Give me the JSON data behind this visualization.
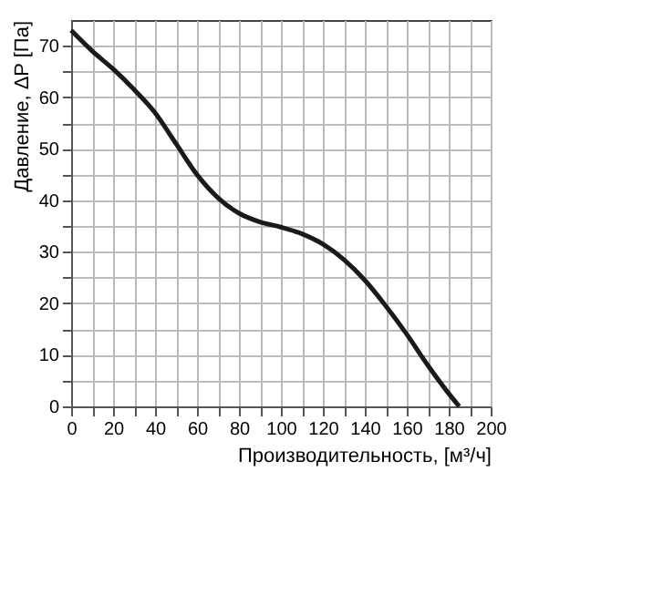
{
  "chart_data": {
    "type": "line",
    "xlabel": "Производительность, [м³/ч]",
    "ylabel": "Давление, ΔP [Па]",
    "x": [
      0,
      10,
      20,
      30,
      40,
      50,
      60,
      70,
      80,
      90,
      100,
      110,
      120,
      130,
      140,
      150,
      160,
      170,
      180,
      185
    ],
    "series": [
      {
        "color": "#1a1a1a",
        "values": [
          73,
          69,
          65.5,
          61.5,
          57,
          51,
          45,
          40.5,
          37.5,
          35.8,
          34.8,
          33.5,
          31.5,
          28.5,
          24.5,
          19.5,
          14,
          8,
          2.5,
          0
        ]
      }
    ],
    "xlim": [
      0,
      200
    ],
    "ylim": [
      0,
      75
    ],
    "xticks": [
      0,
      {
        "value": 10,
        "label": null
      },
      20,
      {
        "value": 30,
        "label": null
      },
      40,
      {
        "value": 50,
        "label": null
      },
      60,
      {
        "value": 70,
        "label": null
      },
      80,
      {
        "value": 90,
        "label": null
      },
      100,
      {
        "value": 110,
        "label": null
      },
      120,
      {
        "value": 130,
        "label": null
      },
      140,
      {
        "value": 150,
        "label": null
      },
      160,
      {
        "value": 170,
        "label": null
      },
      180,
      {
        "value": 190,
        "label": null
      },
      200
    ],
    "yticks": [
      0,
      {
        "value": 5,
        "label": null
      },
      10,
      {
        "value": 15,
        "label": null
      },
      20,
      {
        "value": 25,
        "label": null
      },
      30,
      {
        "value": 35,
        "label": null
      },
      40,
      {
        "value": 45,
        "label": null
      },
      50,
      {
        "value": 55,
        "label": null
      },
      60,
      {
        "value": 65,
        "label": null
      },
      70
    ],
    "grid": true,
    "marker": "none",
    "line_style": "solid"
  }
}
